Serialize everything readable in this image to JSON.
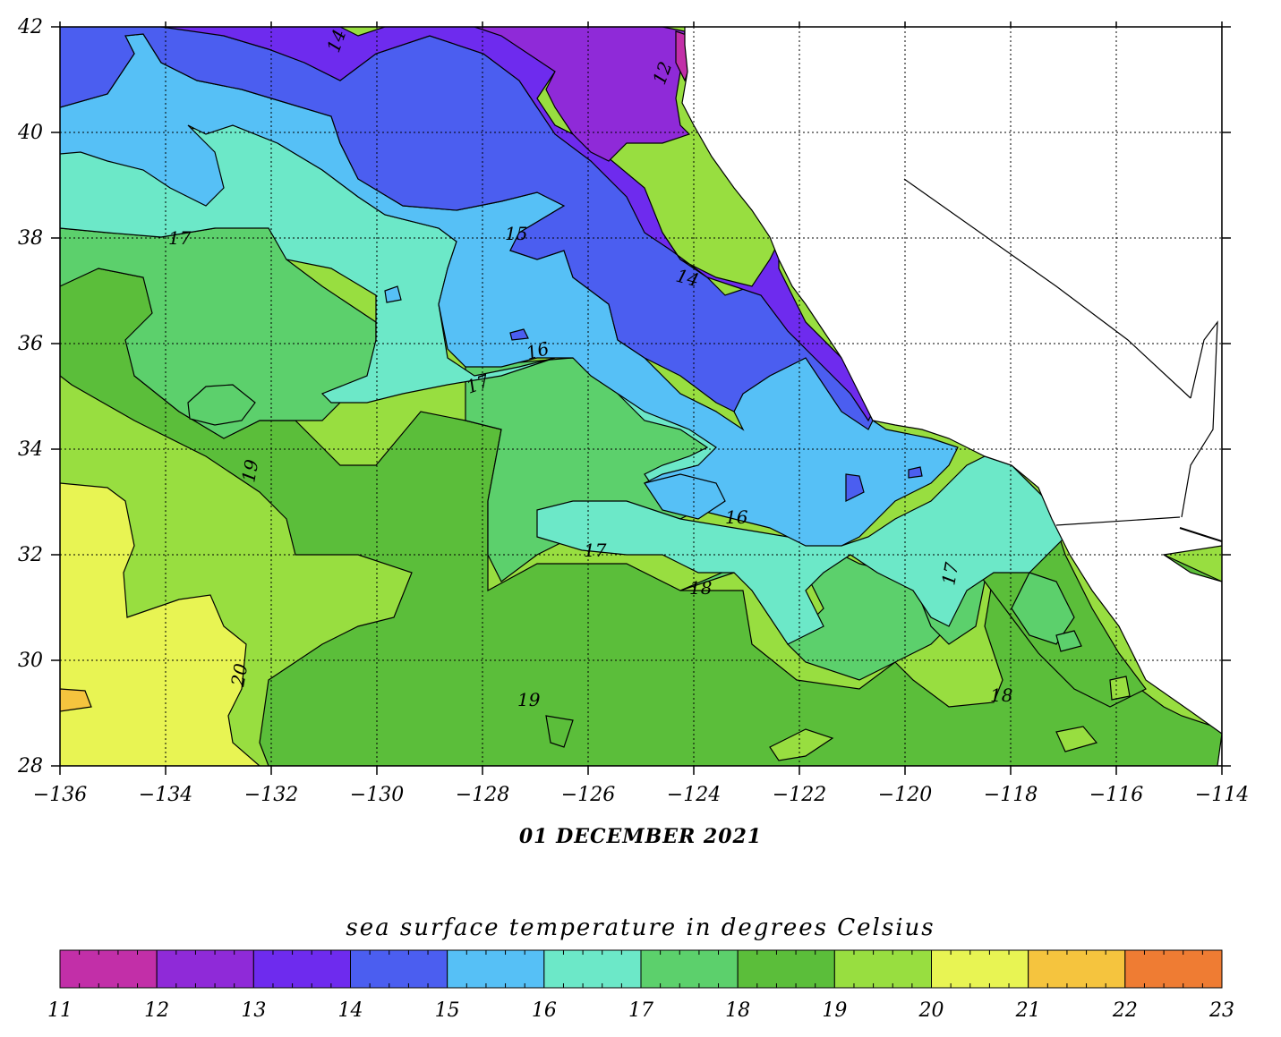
{
  "map": {
    "lon_ticks": [
      "−136",
      "−134",
      "−132",
      "−130",
      "−128",
      "−126",
      "−124",
      "−122",
      "−120",
      "−118",
      "−116",
      "−114"
    ],
    "lat_ticks": [
      "42",
      "40",
      "38",
      "36",
      "34",
      "32",
      "30",
      "28"
    ],
    "date": "01 DECEMBER 2021",
    "contour_labels": [
      {
        "text": "14"
      },
      {
        "text": "12"
      },
      {
        "text": "17"
      },
      {
        "text": "15"
      },
      {
        "text": "14"
      },
      {
        "text": "16"
      },
      {
        "text": "17"
      },
      {
        "text": "19"
      },
      {
        "text": "16"
      },
      {
        "text": "17"
      },
      {
        "text": "18"
      },
      {
        "text": "17"
      },
      {
        "text": "19"
      },
      {
        "text": "20"
      },
      {
        "text": "18"
      }
    ]
  },
  "legend": {
    "title": "sea surface temperature in degrees Celsius",
    "labels": [
      "11",
      "12",
      "13",
      "14",
      "15",
      "16",
      "17",
      "18",
      "19",
      "20",
      "21",
      "22",
      "23"
    ],
    "colors": [
      "#c22fa8",
      "#8f2ad8",
      "#6e2bee",
      "#4b5ef0",
      "#56c0f6",
      "#6ce8c8",
      "#5cd06c",
      "#5bbe3a",
      "#98de40",
      "#e8f453",
      "#f5c43e",
      "#ef7c33"
    ]
  }
}
